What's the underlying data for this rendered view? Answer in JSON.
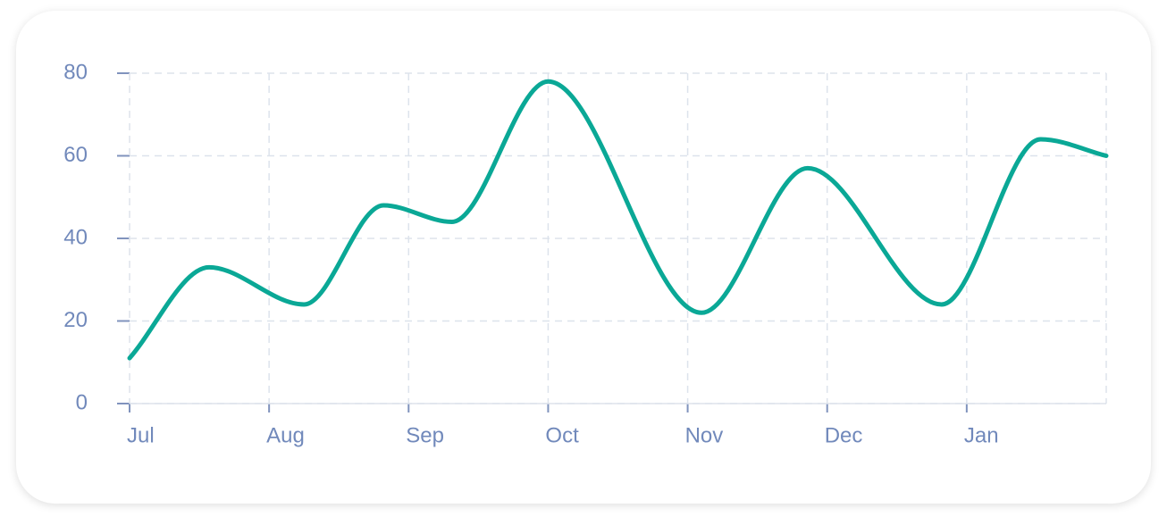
{
  "chart_data": {
    "type": "line",
    "x": [
      0,
      0.57,
      1.25,
      1.82,
      2.31,
      3.0,
      4.1,
      4.86,
      5.82,
      6.53,
      7.0
    ],
    "values": [
      11,
      33,
      24,
      48,
      44,
      78,
      22,
      57,
      24,
      64,
      60
    ],
    "color": "#0aa896",
    "xlim": [
      0,
      7
    ],
    "xticks": [
      {
        "value": 0,
        "label": "Jul"
      },
      {
        "value": 1,
        "label": "Aug"
      },
      {
        "value": 2,
        "label": "Sep"
      },
      {
        "value": 3,
        "label": "Oct"
      },
      {
        "value": 4,
        "label": "Nov"
      },
      {
        "value": 5,
        "label": "Dec"
      },
      {
        "value": 6,
        "label": "Jan"
      }
    ],
    "ylim": [
      0,
      80
    ],
    "yticks": [
      0,
      20,
      40,
      60,
      80
    ],
    "grid": true
  }
}
